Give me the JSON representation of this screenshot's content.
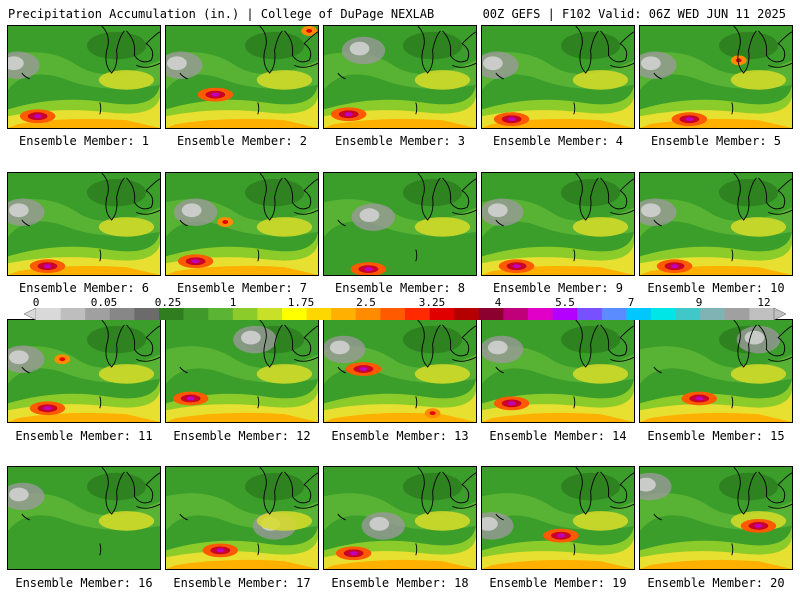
{
  "header": {
    "left": "Precipitation Accumulation (in.) | College of DuPage NEXLAB",
    "right": "00Z GEFS | F102 Valid: 06Z WED JUN 11 2025"
  },
  "colorbar": {
    "tick_labels": [
      "0",
      "0.05",
      "0.25",
      "1",
      "1.75",
      "2.5",
      "3.25",
      "4",
      "5.5",
      "7",
      "9",
      "12"
    ],
    "colors": [
      "#d9d9d9",
      "#bebebe",
      "#a0a0a0",
      "#878787",
      "#6b6b6b",
      "#2f7d1f",
      "#3f9a2b",
      "#5bb433",
      "#8ccc2a",
      "#c8e028",
      "#ffff00",
      "#ffd700",
      "#ffb000",
      "#ff8c00",
      "#ff5a00",
      "#ff2a00",
      "#e00000",
      "#b40000",
      "#8c0030",
      "#c0007a",
      "#e000c8",
      "#b400ff",
      "#7850ff",
      "#5a8cff",
      "#00c8ff",
      "#00e6e6",
      "#40c8c8",
      "#80b4b4",
      "#a0a0a0",
      "#c0c0c0"
    ]
  },
  "members": [
    {
      "caption": "Ensemble Member: 1"
    },
    {
      "caption": "Ensemble Member: 2"
    },
    {
      "caption": "Ensemble Member: 3"
    },
    {
      "caption": "Ensemble Member: 4"
    },
    {
      "caption": "Ensemble Member: 5"
    },
    {
      "caption": "Ensemble Member: 6"
    },
    {
      "caption": "Ensemble Member: 7"
    },
    {
      "caption": "Ensemble Member: 8"
    },
    {
      "caption": "Ensemble Member: 9"
    },
    {
      "caption": "Ensemble Member: 10"
    },
    {
      "caption": "Ensemble Member: 11"
    },
    {
      "caption": "Ensemble Member: 12"
    },
    {
      "caption": "Ensemble Member: 13"
    },
    {
      "caption": "Ensemble Member: 14"
    },
    {
      "caption": "Ensemble Member: 15"
    },
    {
      "caption": "Ensemble Member: 16"
    },
    {
      "caption": "Ensemble Member: 17"
    },
    {
      "caption": "Ensemble Member: 18"
    },
    {
      "caption": "Ensemble Member: 19"
    },
    {
      "caption": "Ensemble Member: 20"
    }
  ]
}
